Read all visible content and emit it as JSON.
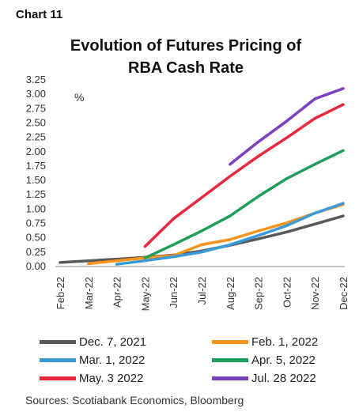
{
  "header": {
    "label": "Chart 11",
    "title_line1": "Evolution of Futures Pricing of",
    "title_line2": "RBA Cash Rate"
  },
  "source": "Sources: Scotiabank Economics, Bloomberg",
  "colors": {
    "dec2021": "#595959",
    "feb2022": "#f7941d",
    "mar2022": "#3a9ad9",
    "apr2022": "#1f9e5a",
    "may2022": "#e8283a",
    "jul2022": "#7b3fbf"
  },
  "chart_data": {
    "type": "line",
    "unit_label": "%",
    "x": [
      "Feb-22",
      "Mar-22",
      "Apr-22",
      "May-22",
      "Jun-22",
      "Jul-22",
      "Aug-22",
      "Sep-22",
      "Oct-22",
      "Nov-22",
      "Dec-22"
    ],
    "ylim": [
      0,
      3.25
    ],
    "yticks": [
      "0.00",
      "0.25",
      "0.50",
      "0.75",
      "1.00",
      "1.25",
      "1.50",
      "1.75",
      "2.00",
      "2.25",
      "2.50",
      "2.75",
      "3.00",
      "3.25"
    ],
    "grid": false,
    "series": [
      {
        "name": "Dec. 7, 2021",
        "color": "#595959",
        "values": [
          0.07,
          0.1,
          0.13,
          0.16,
          0.2,
          0.27,
          0.37,
          0.48,
          0.6,
          0.74,
          0.88
        ]
      },
      {
        "name": "Feb. 1, 2022",
        "color": "#f7941d",
        "values": [
          null,
          0.05,
          0.1,
          0.15,
          0.19,
          0.38,
          0.47,
          0.62,
          0.76,
          0.93,
          1.08
        ]
      },
      {
        "name": "Mar. 1, 2022",
        "color": "#3a9ad9",
        "values": [
          null,
          null,
          0.04,
          0.1,
          0.17,
          0.25,
          0.38,
          0.54,
          0.71,
          0.93,
          1.1
        ]
      },
      {
        "name": "Apr. 5, 2022",
        "color": "#1f9e5a",
        "values": [
          null,
          null,
          null,
          0.15,
          0.38,
          0.62,
          0.88,
          1.22,
          1.53,
          1.78,
          2.02
        ]
      },
      {
        "name": "May. 3 2022",
        "color": "#e8283a",
        "values": [
          null,
          null,
          null,
          0.35,
          0.83,
          1.2,
          1.57,
          1.92,
          2.24,
          2.58,
          2.82
        ]
      },
      {
        "name": "Jul. 28 2022",
        "color": "#7b3fbf",
        "values": [
          null,
          null,
          null,
          null,
          null,
          null,
          1.78,
          2.17,
          2.53,
          2.92,
          3.1
        ]
      }
    ]
  }
}
